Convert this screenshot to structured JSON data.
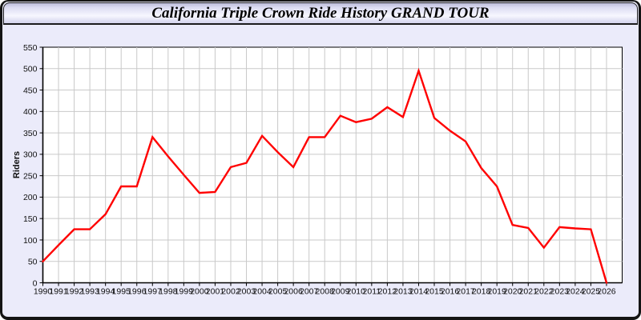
{
  "window": {
    "title": "California Triple Crown Ride History GRAND TOUR"
  },
  "chart_data": {
    "type": "line",
    "title": "California Triple Crown Ride History GRAND TOUR",
    "xlabel": "",
    "ylabel": "Riders",
    "ylim": [
      0,
      550
    ],
    "y_tick_step": 50,
    "grid": true,
    "legend": "none",
    "x": [
      1990,
      1991,
      1992,
      1993,
      1994,
      1995,
      1996,
      1997,
      1998,
      1999,
      2000,
      2001,
      2002,
      2003,
      2004,
      2005,
      2006,
      2007,
      2008,
      2009,
      2010,
      2011,
      2012,
      2013,
      2014,
      2015,
      2016,
      2017,
      2018,
      2019,
      2020,
      2021,
      2022,
      2023,
      2024,
      2025,
      2026
    ],
    "series": [
      {
        "name": "Riders",
        "values": [
          50,
          88,
          125,
          125,
          160,
          225,
          225,
          340,
          295,
          252,
          210,
          212,
          270,
          280,
          343,
          305,
          270,
          340,
          340,
          390,
          375,
          383,
          410,
          387,
          495,
          385,
          355,
          330,
          268,
          225,
          135,
          128,
          82,
          130,
          127,
          125,
          0
        ]
      }
    ]
  },
  "colors": {
    "panel_bg": "#ebebfa",
    "plot_bg": "#ffffff",
    "grid": "#c9c9c9",
    "axis": "#000000",
    "tick_label": "#111111",
    "line": "#ff0000",
    "frame_border": "#141414",
    "header_border": "#1c1c1c",
    "header_gradient_top": "#bcbcda",
    "header_gradient_mid": "#f7f7ff",
    "header_gradient_bottom": "#d3d3ec"
  }
}
